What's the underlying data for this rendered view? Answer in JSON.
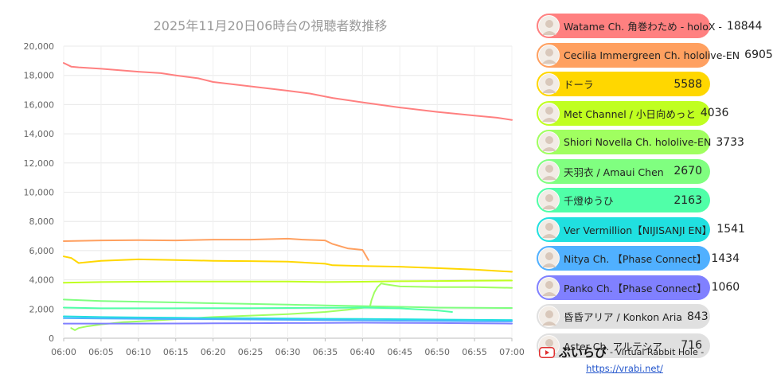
{
  "chart_data": {
    "type": "line",
    "title": "2025年11月20日06時台の視聴者数推移",
    "xlabel": "",
    "ylabel": "",
    "x_ticks": [
      "06:00",
      "06:05",
      "06:10",
      "06:15",
      "06:20",
      "06:25",
      "06:30",
      "06:35",
      "06:40",
      "06:45",
      "06:50",
      "06:55",
      "07:00"
    ],
    "xlim": [
      0,
      60
    ],
    "ylim": [
      0,
      20000
    ],
    "y_ticks": [
      0,
      2000,
      4000,
      6000,
      8000,
      10000,
      12000,
      14000,
      16000,
      18000,
      20000
    ],
    "y_tick_labels": [
      "0",
      "2,000",
      "4,000",
      "6,000",
      "8,000",
      "10,000",
      "12,000",
      "14,000",
      "16,000",
      "18,000",
      "20,000"
    ],
    "grid": true,
    "legend_position": "right",
    "series": [
      {
        "name": "Watame Ch. 角巻わため - holoX -",
        "value": "18844",
        "color": "#ff8080",
        "points": [
          [
            0,
            18850
          ],
          [
            1,
            18600
          ],
          [
            2,
            18550
          ],
          [
            5,
            18450
          ],
          [
            10,
            18250
          ],
          [
            13,
            18150
          ],
          [
            15,
            18000
          ],
          [
            18,
            17800
          ],
          [
            20,
            17550
          ],
          [
            25,
            17250
          ],
          [
            30,
            16950
          ],
          [
            33,
            16750
          ],
          [
            36,
            16450
          ],
          [
            40,
            16150
          ],
          [
            45,
            15800
          ],
          [
            50,
            15500
          ],
          [
            55,
            15250
          ],
          [
            58,
            15100
          ],
          [
            60,
            14950
          ]
        ]
      },
      {
        "name": "Cecilia Immergreen Ch. hololive-EN",
        "value": "6905",
        "color": "#ffa060",
        "points": [
          [
            0,
            6650
          ],
          [
            5,
            6700
          ],
          [
            10,
            6720
          ],
          [
            15,
            6700
          ],
          [
            20,
            6750
          ],
          [
            25,
            6750
          ],
          [
            30,
            6820
          ],
          [
            32,
            6750
          ],
          [
            35,
            6700
          ],
          [
            36,
            6450
          ],
          [
            38,
            6150
          ],
          [
            40,
            6050
          ],
          [
            40.3,
            5800
          ],
          [
            40.8,
            5350
          ]
        ]
      },
      {
        "name": "ドーラ",
        "value": "5588",
        "color": "#ffd700",
        "points": [
          [
            0,
            5600
          ],
          [
            1,
            5500
          ],
          [
            2,
            5150
          ],
          [
            5,
            5300
          ],
          [
            10,
            5400
          ],
          [
            15,
            5350
          ],
          [
            20,
            5300
          ],
          [
            25,
            5280
          ],
          [
            30,
            5250
          ],
          [
            35,
            5100
          ],
          [
            36,
            5000
          ],
          [
            40,
            4950
          ],
          [
            45,
            4900
          ],
          [
            50,
            4800
          ],
          [
            55,
            4700
          ],
          [
            60,
            4550
          ]
        ]
      },
      {
        "name": "Met Channel / 小日向めっと",
        "value": "4036",
        "color": "#c0ff20",
        "points": [
          [
            0,
            3800
          ],
          [
            5,
            3850
          ],
          [
            10,
            3870
          ],
          [
            15,
            3880
          ],
          [
            20,
            3880
          ],
          [
            25,
            3880
          ],
          [
            30,
            3880
          ],
          [
            35,
            3850
          ],
          [
            40,
            3870
          ],
          [
            45,
            3900
          ],
          [
            50,
            3920
          ],
          [
            55,
            3940
          ],
          [
            60,
            3950
          ]
        ]
      },
      {
        "name": "Shiori Novella Ch. hololive-EN",
        "value": "3733",
        "color": "#a0ff60",
        "points": [
          [
            1,
            700
          ],
          [
            1.5,
            550
          ],
          [
            2,
            700
          ],
          [
            3,
            800
          ],
          [
            5,
            950
          ],
          [
            8,
            1100
          ],
          [
            10,
            1150
          ],
          [
            15,
            1300
          ],
          [
            20,
            1450
          ],
          [
            25,
            1550
          ],
          [
            30,
            1650
          ],
          [
            35,
            1800
          ],
          [
            38,
            1950
          ],
          [
            41,
            2150
          ],
          [
            41.2,
            2600
          ],
          [
            41.6,
            3150
          ],
          [
            42,
            3500
          ],
          [
            42.5,
            3750
          ],
          [
            43,
            3700
          ],
          [
            45,
            3550
          ],
          [
            50,
            3500
          ],
          [
            55,
            3500
          ],
          [
            60,
            3450
          ]
        ]
      },
      {
        "name": "天羽衣 / Amaui Chen",
        "value": "2670",
        "color": "#80ff80",
        "points": [
          [
            0,
            2650
          ],
          [
            5,
            2550
          ],
          [
            10,
            2500
          ],
          [
            15,
            2450
          ],
          [
            20,
            2400
          ],
          [
            25,
            2350
          ],
          [
            30,
            2300
          ],
          [
            35,
            2250
          ],
          [
            40,
            2200
          ],
          [
            45,
            2150
          ],
          [
            50,
            2100
          ],
          [
            55,
            2080
          ],
          [
            60,
            2070
          ]
        ]
      },
      {
        "name": "千燈ゆうひ",
        "value": "2163",
        "color": "#50ffa8",
        "points": [
          [
            0,
            2100
          ],
          [
            5,
            2050
          ],
          [
            10,
            2050
          ],
          [
            15,
            2050
          ],
          [
            20,
            2060
          ],
          [
            25,
            2060
          ],
          [
            30,
            2070
          ],
          [
            35,
            2080
          ],
          [
            40,
            2100
          ],
          [
            45,
            2050
          ],
          [
            50,
            1900
          ],
          [
            52,
            1800
          ]
        ]
      },
      {
        "name": "Ver Vermillion【NIJISANJI EN】",
        "value": "1541",
        "color": "#20e0e0",
        "points": [
          [
            0,
            1500
          ],
          [
            5,
            1450
          ],
          [
            10,
            1420
          ],
          [
            15,
            1400
          ],
          [
            20,
            1380
          ],
          [
            25,
            1370
          ],
          [
            30,
            1350
          ],
          [
            35,
            1330
          ],
          [
            40,
            1320
          ],
          [
            45,
            1300
          ],
          [
            50,
            1280
          ],
          [
            55,
            1260
          ],
          [
            60,
            1250
          ]
        ]
      },
      {
        "name": "Nitya Ch. 【Phase Connect】",
        "value": "1434",
        "color": "#50b0ff",
        "points": [
          [
            0,
            1380
          ],
          [
            5,
            1350
          ],
          [
            10,
            1330
          ],
          [
            15,
            1310
          ],
          [
            20,
            1300
          ],
          [
            25,
            1280
          ],
          [
            30,
            1260
          ],
          [
            35,
            1240
          ],
          [
            40,
            1220
          ],
          [
            45,
            1200
          ],
          [
            50,
            1180
          ],
          [
            55,
            1160
          ],
          [
            60,
            1150
          ]
        ]
      },
      {
        "name": "Panko Ch.【Phase Connect】",
        "value": "1060",
        "color": "#8080ff",
        "points": [
          [
            0,
            1000
          ],
          [
            5,
            1000
          ],
          [
            10,
            1000
          ],
          [
            15,
            1010
          ],
          [
            20,
            1020
          ],
          [
            25,
            1030
          ],
          [
            30,
            1040
          ],
          [
            35,
            1050
          ],
          [
            40,
            1060
          ],
          [
            45,
            1050
          ],
          [
            50,
            1040
          ],
          [
            55,
            1020
          ],
          [
            60,
            1000
          ]
        ]
      },
      {
        "name": "昏昏アリア / Konkon Aria",
        "value": "843",
        "color": "#e0e0e0",
        "points": []
      },
      {
        "name": "Aster Ch. アルテシア",
        "value": "716",
        "color": "#e0e0e0",
        "points": []
      }
    ]
  },
  "brand": {
    "name": "ぶいらび",
    "tagline": "- Virtual Rabbit Hole -",
    "url": "https://vrabi.net/"
  }
}
